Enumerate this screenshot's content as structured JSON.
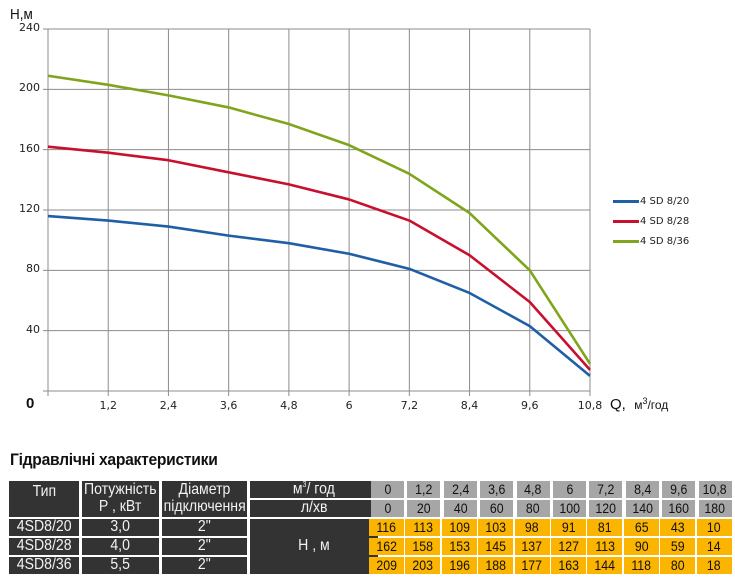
{
  "chart_data": {
    "type": "line",
    "title": "",
    "xlabel": "Q, м³/год",
    "ylabel": "H,м",
    "x": [
      0,
      1.2,
      2.4,
      3.6,
      4.8,
      6,
      7.2,
      8.4,
      9.6,
      10.8
    ],
    "x_tick_labels": [
      "1,2",
      "2,4",
      "3,6",
      "4,8",
      "6",
      "7,2",
      "8,4",
      "9,6",
      "10,8"
    ],
    "y_tick_labels": [
      "240",
      "200",
      "160",
      "120",
      "80",
      "40"
    ],
    "origin_label": "0",
    "xlim": [
      0,
      10.8
    ],
    "ylim": [
      0,
      240
    ],
    "grid": true,
    "legend_position": "right",
    "series": [
      {
        "name": "4 SD 8/20",
        "color": "#1f5fa6",
        "values": [
          116,
          113,
          109,
          103,
          98,
          91,
          81,
          65,
          43,
          10
        ]
      },
      {
        "name": "4 SD 8/28",
        "color": "#c8102e",
        "values": [
          162,
          158,
          153,
          145,
          137,
          127,
          113,
          90,
          59,
          14
        ]
      },
      {
        "name": "4 SD 8/36",
        "color": "#7fa51c",
        "values": [
          209,
          203,
          196,
          188,
          177,
          163,
          144,
          118,
          80,
          18
        ]
      }
    ]
  },
  "axis": {
    "y_title": "H,м",
    "x_title_q": "Q,",
    "x_title_unit": "м",
    "x_title_sup": "3",
    "x_title_rest": "/год",
    "zero": "0"
  },
  "legend": [
    {
      "label": "4 SD 8/20",
      "color": "#1f5fa6"
    },
    {
      "label": "4 SD 8/28",
      "color": "#c8102e"
    },
    {
      "label": "4 SD 8/36",
      "color": "#7fa51c"
    }
  ],
  "section_title": "Гідравлічні характеристики",
  "table": {
    "headers": {
      "type": "Тип",
      "power_line1": "Потужність",
      "power_line2": "P , кВт",
      "diameter_line1": "Діаметр",
      "diameter_line2": "підключення",
      "flow_m3_unit": "м",
      "flow_m3_sup": "3",
      "flow_m3_rest": "/ год",
      "flow_lmin": "л/хв",
      "head": "H , м"
    },
    "flow_m3h": [
      "0",
      "1,2",
      "2,4",
      "3,6",
      "4,8",
      "6",
      "7,2",
      "8,4",
      "9,6",
      "10,8"
    ],
    "flow_lmin": [
      "0",
      "20",
      "40",
      "60",
      "80",
      "100",
      "120",
      "140",
      "160",
      "180"
    ],
    "rows": [
      {
        "type": "4SD8/20",
        "power": "3,0",
        "diameter": "2\"",
        "head": [
          "116",
          "113",
          "109",
          "103",
          "98",
          "91",
          "81",
          "65",
          "43",
          "10"
        ]
      },
      {
        "type": "4SD8/28",
        "power": "4,0",
        "diameter": "2\"",
        "head": [
          "162",
          "158",
          "153",
          "145",
          "137",
          "127",
          "113",
          "90",
          "59",
          "14"
        ]
      },
      {
        "type": "4SD8/36",
        "power": "5,5",
        "diameter": "2\"",
        "head": [
          "209",
          "203",
          "196",
          "188",
          "177",
          "163",
          "144",
          "118",
          "80",
          "18"
        ]
      }
    ]
  },
  "colors": {
    "header_dark": "#333333",
    "flow_grey": "#a6a6a6",
    "head_amber": "#fbb400",
    "grid": "#8c8c8c"
  }
}
